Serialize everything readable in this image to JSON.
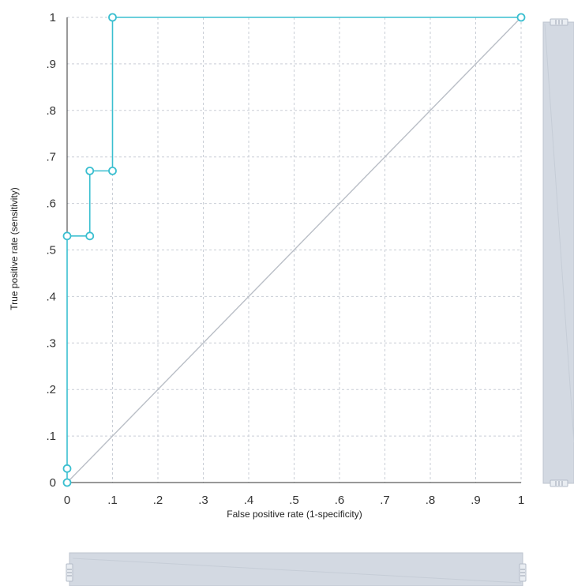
{
  "chart_data": {
    "type": "line",
    "title": "",
    "xlabel": "False positive rate (1-specificity)",
    "ylabel": "True positive rate (sensitivity)",
    "xlim": [
      0,
      1
    ],
    "ylim": [
      0,
      1
    ],
    "x_ticks": [
      "0",
      ".1",
      ".2",
      ".3",
      ".4",
      ".5",
      ".6",
      ".7",
      ".8",
      ".9",
      "1"
    ],
    "y_ticks": [
      "0",
      ".1",
      ".2",
      ".3",
      ".4",
      ".5",
      ".6",
      ".7",
      ".8",
      ".9",
      "1"
    ],
    "grid": true,
    "series": [
      {
        "color": "#3bbfd0",
        "x": [
          0,
          0,
          0,
          0.05,
          0.05,
          0.1,
          0.1,
          1
        ],
        "y": [
          0,
          0.03,
          0.53,
          0.53,
          0.67,
          0.67,
          1,
          1
        ]
      },
      {
        "color": "#b9bec6",
        "x": [
          0,
          1
        ],
        "y": [
          0,
          1
        ]
      }
    ]
  },
  "controls": {
    "vertical_slider": {
      "range": [
        0,
        1
      ]
    },
    "horizontal_slider": {
      "range": [
        0,
        1
      ]
    }
  }
}
